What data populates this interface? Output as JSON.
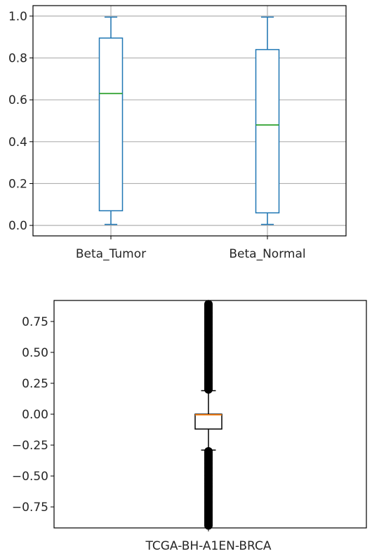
{
  "chart_data": [
    {
      "type": "box",
      "title": "",
      "xlabel": "",
      "ylabel": "",
      "ylim": [
        -0.05,
        1.05
      ],
      "yticks": [
        "0.0",
        "0.2",
        "0.4",
        "0.6",
        "0.8",
        "1.0"
      ],
      "grid": true,
      "categories": [
        "Beta_Tumor",
        "Beta_Normal"
      ],
      "boxes": [
        {
          "name": "Beta_Tumor",
          "whisker_low": 0.005,
          "q1": 0.07,
          "median": 0.63,
          "q3": 0.895,
          "whisker_high": 0.995
        },
        {
          "name": "Beta_Normal",
          "whisker_low": 0.005,
          "q1": 0.06,
          "median": 0.48,
          "q3": 0.84,
          "whisker_high": 0.995
        }
      ],
      "colors": {
        "box": "#1f77b4",
        "median": "#2ca02c",
        "grid": "#b0b0b0"
      }
    },
    {
      "type": "box",
      "title": "",
      "xlabel": "",
      "ylabel": "",
      "ylim": [
        -0.92,
        0.92
      ],
      "yticks": [
        "−0.75",
        "−0.50",
        "−0.25",
        "0.00",
        "0.25",
        "0.50",
        "0.75"
      ],
      "grid": false,
      "categories": [
        "TCGA-BH-A1EN-BRCA"
      ],
      "boxes": [
        {
          "name": "TCGA-BH-A1EN-BRCA",
          "whisker_low": -0.29,
          "q1": -0.12,
          "median": -0.005,
          "q3": 0.0,
          "whisker_high": 0.19,
          "outliers_high": [
            0.2,
            0.89
          ],
          "outliers_low": [
            -0.9,
            -0.3
          ]
        }
      ],
      "colors": {
        "box": "#000000",
        "median": "#ff7f0e"
      }
    }
  ]
}
